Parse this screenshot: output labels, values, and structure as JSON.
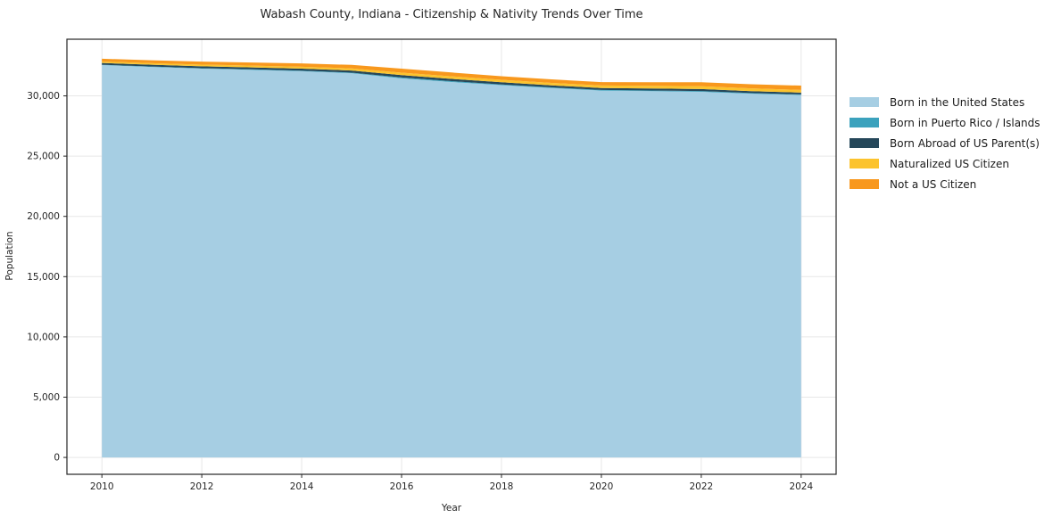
{
  "chart_data": {
    "type": "area",
    "stacked": true,
    "title": "Wabash County, Indiana - Citizenship & Nativity Trends Over Time",
    "xlabel": "Year",
    "ylabel": "Population",
    "x": [
      2010,
      2011,
      2012,
      2013,
      2014,
      2015,
      2016,
      2017,
      2018,
      2019,
      2020,
      2021,
      2022,
      2023,
      2024
    ],
    "series": [
      {
        "name": "Born in the United States",
        "color": "#a6cee3",
        "values": [
          32550,
          32400,
          32260,
          32160,
          32050,
          31880,
          31450,
          31150,
          30890,
          30650,
          30440,
          30390,
          30340,
          30180,
          30070
        ]
      },
      {
        "name": "Born in Puerto Rico / Islands",
        "color": "#3ba2bd",
        "values": [
          30,
          35,
          40,
          40,
          45,
          50,
          75,
          70,
          60,
          55,
          50,
          55,
          60,
          55,
          50
        ]
      },
      {
        "name": "Born Abroad of US Parent(s)",
        "color": "#25475a",
        "values": [
          150,
          150,
          155,
          160,
          165,
          175,
          200,
          190,
          180,
          170,
          160,
          165,
          170,
          160,
          150
        ]
      },
      {
        "name": "Naturalized US Citizen",
        "color": "#fcc32d",
        "values": [
          120,
          130,
          140,
          150,
          160,
          175,
          200,
          210,
          200,
          205,
          210,
          220,
          230,
          225,
          220
        ]
      },
      {
        "name": "Not a US Citizen",
        "color": "#f8981d",
        "values": [
          230,
          240,
          250,
          260,
          270,
          290,
          330,
          320,
          300,
          290,
          280,
          300,
          330,
          340,
          360
        ]
      }
    ],
    "xticks": [
      {
        "value": 2010,
        "label": "2010"
      },
      {
        "value": 2012,
        "label": "2012"
      },
      {
        "value": 2014,
        "label": "2014"
      },
      {
        "value": 2016,
        "label": "2016"
      },
      {
        "value": 2018,
        "label": "2018"
      },
      {
        "value": 2020,
        "label": "2020"
      },
      {
        "value": 2022,
        "label": "2022"
      },
      {
        "value": 2024,
        "label": "2024"
      }
    ],
    "yticks": [
      {
        "value": 0,
        "label": "0"
      },
      {
        "value": 5000,
        "label": "5,000"
      },
      {
        "value": 10000,
        "label": "10,000"
      },
      {
        "value": 15000,
        "label": "15,000"
      },
      {
        "value": 20000,
        "label": "20,000"
      },
      {
        "value": 25000,
        "label": "25,000"
      },
      {
        "value": 30000,
        "label": "30,000"
      }
    ],
    "xlim": [
      2009.3,
      2024.7
    ],
    "ylim": [
      -1400,
      34700
    ],
    "grid": true,
    "legend_position": "right"
  },
  "style_colors": {
    "spine": "#262626",
    "grid": "#e7e7e7",
    "tick_text": "#262626"
  }
}
